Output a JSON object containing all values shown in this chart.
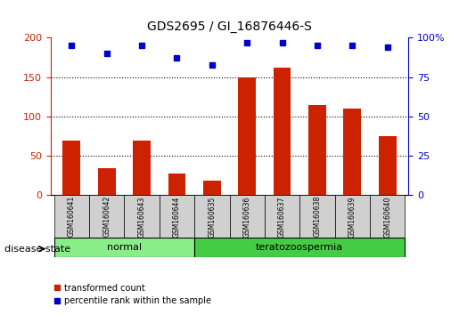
{
  "title": "GDS2695 / GI_16876446-S",
  "samples": [
    "GSM160641",
    "GSM160642",
    "GSM160643",
    "GSM160644",
    "GSM160635",
    "GSM160636",
    "GSM160637",
    "GSM160638",
    "GSM160639",
    "GSM160640"
  ],
  "red_values": [
    70,
    35,
    70,
    28,
    19,
    150,
    162,
    115,
    110,
    75
  ],
  "blue_values": [
    95,
    90,
    95,
    87,
    83,
    97,
    97,
    95,
    95,
    94
  ],
  "bar_color": "#cc2200",
  "dot_color": "#0000cc",
  "left_ylim": [
    0,
    200
  ],
  "right_ylim": [
    0,
    100
  ],
  "left_yticks": [
    0,
    50,
    100,
    150,
    200
  ],
  "right_yticks": [
    0,
    25,
    50,
    75,
    100
  ],
  "right_yticklabels": [
    "0",
    "25",
    "50",
    "75",
    "100%"
  ],
  "normal_color": "#88ee88",
  "terato_color": "#44cc44",
  "group_label": "disease state",
  "legend_red": "transformed count",
  "legend_blue": "percentile rank within the sample"
}
